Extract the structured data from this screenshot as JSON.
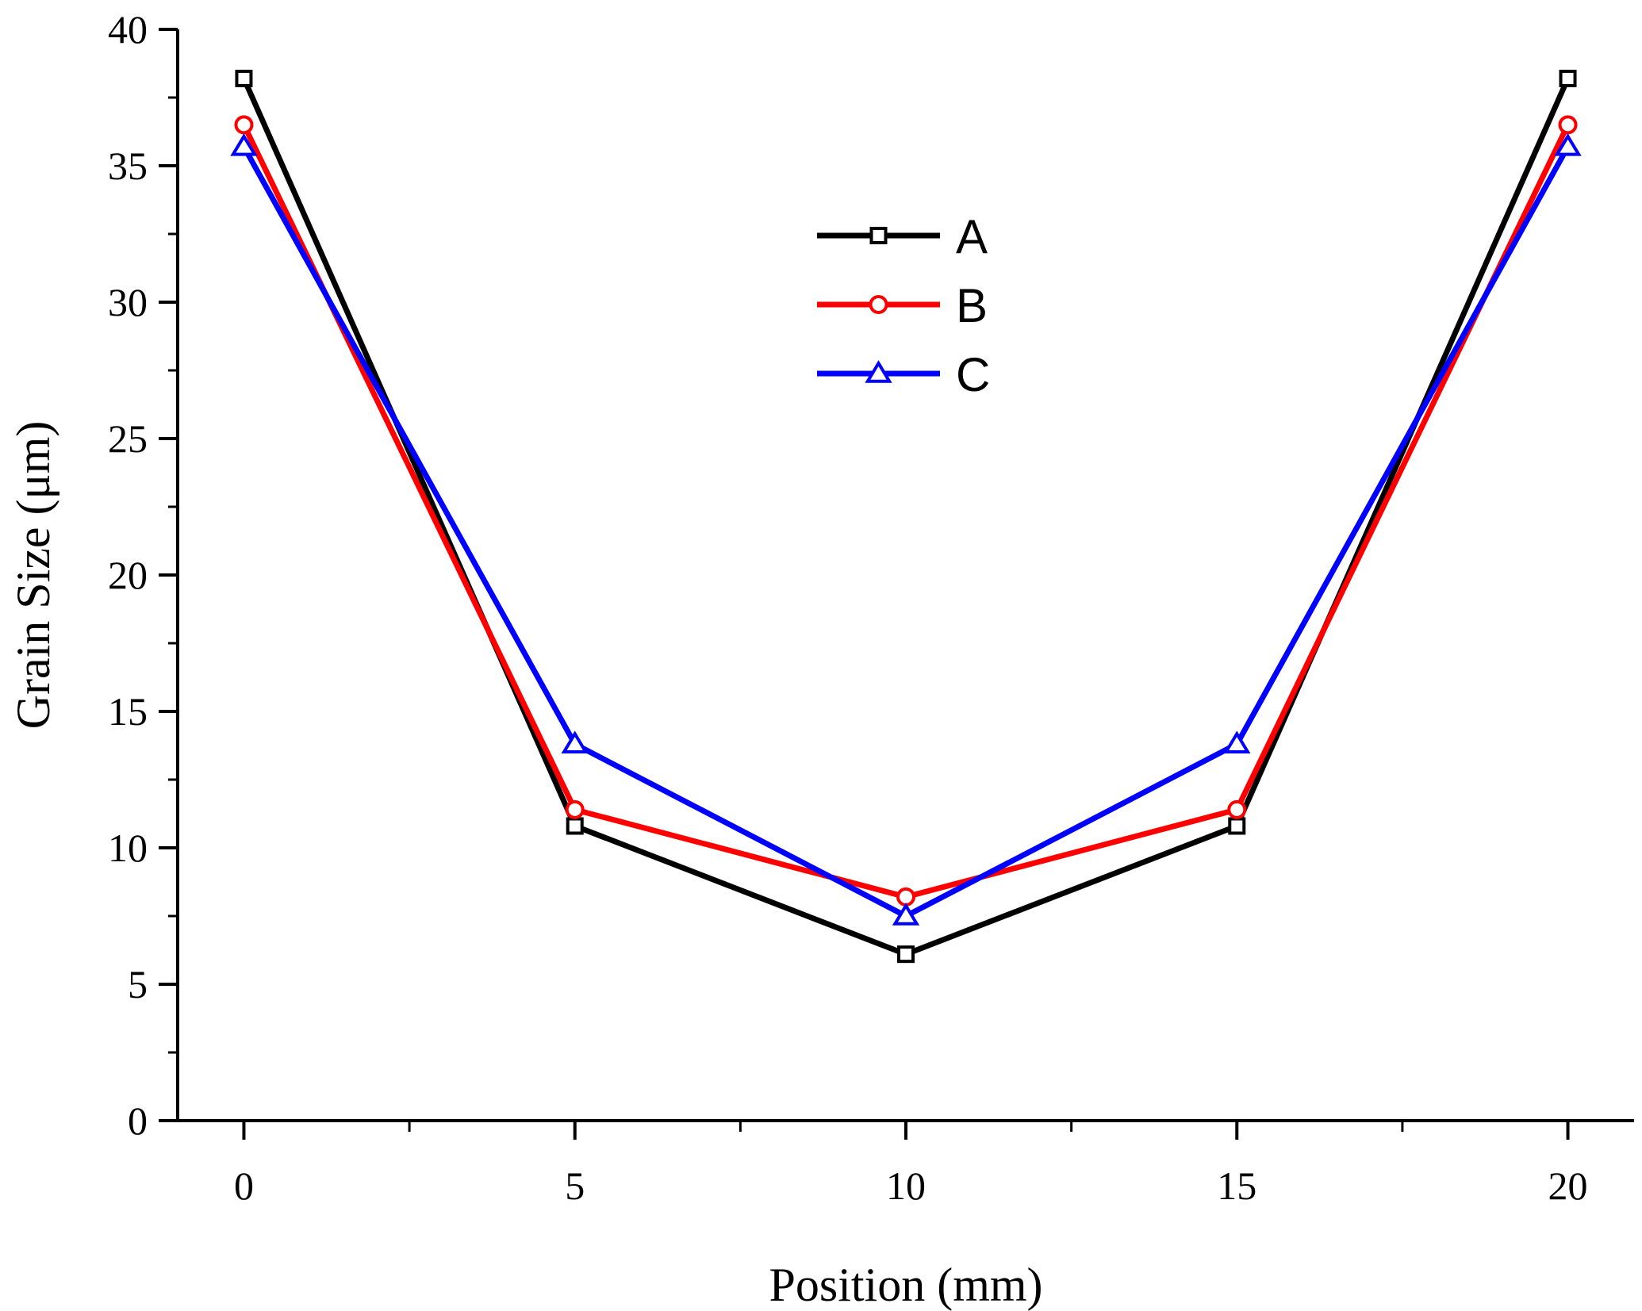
{
  "chart_data": {
    "type": "line",
    "title": "",
    "xlabel": "Position (mm)",
    "ylabel": "Grain Size (μm)",
    "xlim": [
      -1,
      21
    ],
    "ylim": [
      0,
      40
    ],
    "x_ticks": [
      0,
      5,
      10,
      15,
      20
    ],
    "x_tick_labels": [
      "0",
      "5",
      "10",
      "15",
      "20"
    ],
    "x_minor_ticks": [
      2.5,
      7.5,
      12.5,
      17.5
    ],
    "y_ticks": [
      0,
      5,
      10,
      15,
      20,
      25,
      30,
      35,
      40
    ],
    "y_tick_labels": [
      "0",
      "5",
      "10",
      "15",
      "20",
      "25",
      "30",
      "35",
      "40"
    ],
    "y_minor_ticks": [
      2.5,
      7.5,
      12.5,
      17.5,
      22.5,
      27.5,
      32.5,
      37.5
    ],
    "x": [
      0,
      5,
      10,
      15,
      20
    ],
    "legend_position": "top-center",
    "series": [
      {
        "name": "A",
        "values": [
          38.2,
          10.8,
          6.1,
          10.8,
          38.2
        ],
        "color": "#000000",
        "marker": "square"
      },
      {
        "name": "B",
        "values": [
          36.5,
          11.4,
          8.2,
          11.4,
          36.5
        ],
        "color": "#ff0000",
        "marker": "circle"
      },
      {
        "name": "C",
        "values": [
          35.7,
          13.8,
          7.5,
          13.8,
          35.7
        ],
        "color": "#0000ff",
        "marker": "triangle"
      }
    ]
  }
}
